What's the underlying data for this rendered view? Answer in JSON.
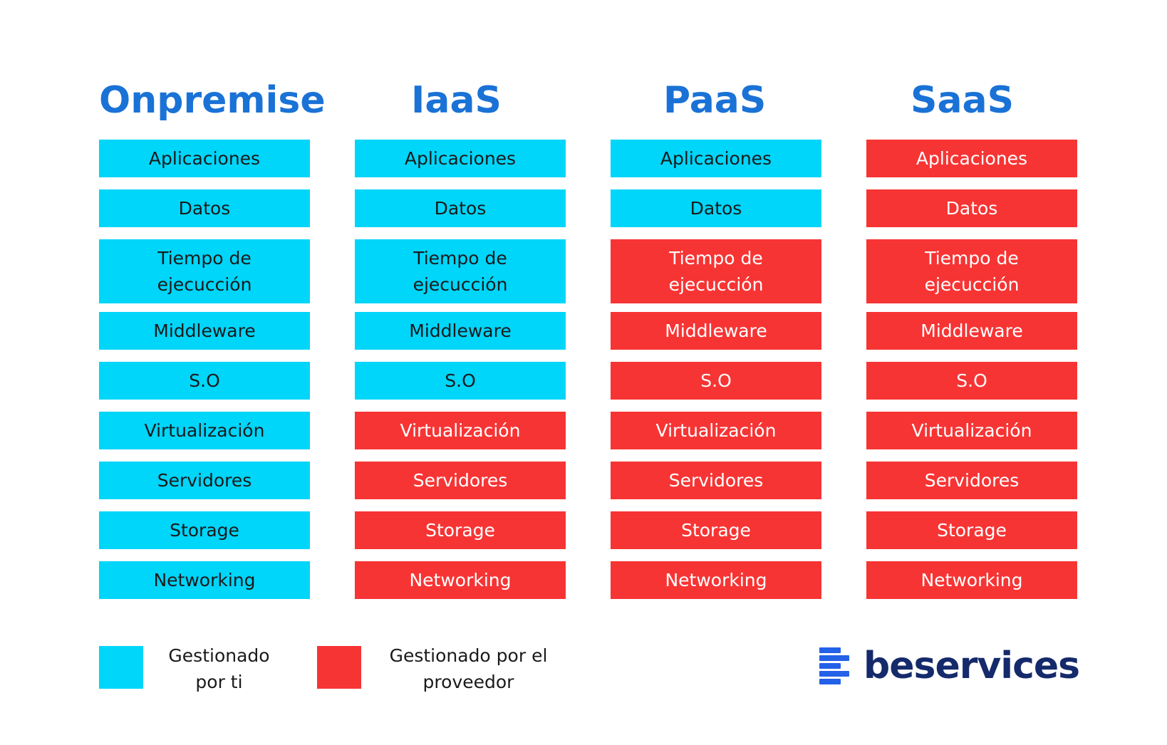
{
  "colors": {
    "you": "#00d5fa",
    "provider": "#f73434",
    "title": "#1a72d6",
    "brand": "#142a6b",
    "brand_mark": "#2361e8"
  },
  "columns": [
    {
      "title": "Onpremise",
      "layers": [
        {
          "label": "Aplicaciones",
          "managed_by": "you"
        },
        {
          "label": "Datos",
          "managed_by": "you"
        },
        {
          "label": "Tiempo de ejecucción",
          "managed_by": "you"
        },
        {
          "label": "Middleware",
          "managed_by": "you"
        },
        {
          "label": "S.O",
          "managed_by": "you"
        },
        {
          "label": "Virtualización",
          "managed_by": "you"
        },
        {
          "label": "Servidores",
          "managed_by": "you"
        },
        {
          "label": "Storage",
          "managed_by": "you"
        },
        {
          "label": "Networking",
          "managed_by": "you"
        }
      ]
    },
    {
      "title": "IaaS",
      "layers": [
        {
          "label": "Aplicaciones",
          "managed_by": "you"
        },
        {
          "label": "Datos",
          "managed_by": "you"
        },
        {
          "label": "Tiempo de ejecucción",
          "managed_by": "you"
        },
        {
          "label": "Middleware",
          "managed_by": "you"
        },
        {
          "label": "S.O",
          "managed_by": "you"
        },
        {
          "label": "Virtualización",
          "managed_by": "provider"
        },
        {
          "label": "Servidores",
          "managed_by": "provider"
        },
        {
          "label": "Storage",
          "managed_by": "provider"
        },
        {
          "label": "Networking",
          "managed_by": "provider"
        }
      ]
    },
    {
      "title": "PaaS",
      "layers": [
        {
          "label": "Aplicaciones",
          "managed_by": "you"
        },
        {
          "label": "Datos",
          "managed_by": "you"
        },
        {
          "label": "Tiempo de ejecucción",
          "managed_by": "provider"
        },
        {
          "label": "Middleware",
          "managed_by": "provider"
        },
        {
          "label": "S.O",
          "managed_by": "provider"
        },
        {
          "label": "Virtualización",
          "managed_by": "provider"
        },
        {
          "label": "Servidores",
          "managed_by": "provider"
        },
        {
          "label": "Storage",
          "managed_by": "provider"
        },
        {
          "label": "Networking",
          "managed_by": "provider"
        }
      ]
    },
    {
      "title": "SaaS",
      "layers": [
        {
          "label": "Aplicaciones",
          "managed_by": "provider"
        },
        {
          "label": "Datos",
          "managed_by": "provider"
        },
        {
          "label": "Tiempo de ejecucción",
          "managed_by": "provider"
        },
        {
          "label": "Middleware",
          "managed_by": "provider"
        },
        {
          "label": "S.O",
          "managed_by": "provider"
        },
        {
          "label": "Virtualización",
          "managed_by": "provider"
        },
        {
          "label": "Servidores",
          "managed_by": "provider"
        },
        {
          "label": "Storage",
          "managed_by": "provider"
        },
        {
          "label": "Networking",
          "managed_by": "provider"
        }
      ]
    }
  ],
  "legend": {
    "you_label": "Gestionado por ti",
    "provider_label": "Gestionado por el proveedor"
  },
  "logo": {
    "text": "beservices",
    "icon": "stacked-bars-icon"
  }
}
